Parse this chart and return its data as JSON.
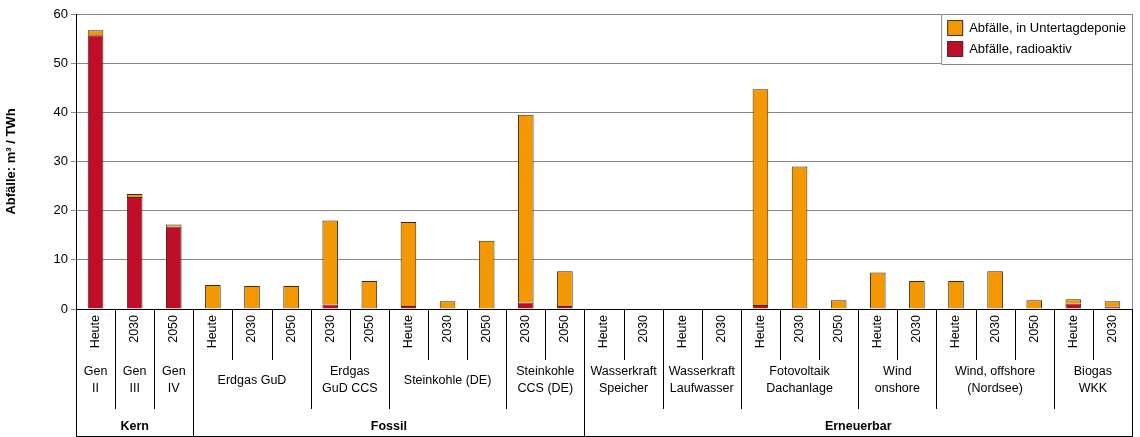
{
  "chart_data": {
    "type": "bar",
    "stacked": true,
    "ylabel": "Abfälle: m³ / TWh",
    "categories": [
      "Heute",
      "2030",
      "2050",
      "Heute",
      "2030",
      "2050",
      "2030",
      "2050",
      "Heute",
      "2030",
      "2050",
      "2030",
      "2050",
      "Heute",
      "2030",
      "Heute",
      "2030",
      "Heute",
      "2030",
      "2050",
      "Heute",
      "2030",
      "Heute",
      "2030",
      "2050",
      "Heute",
      "2030"
    ],
    "series": [
      {
        "name": "Abfälle, radioaktiv",
        "color": "#c00d2a",
        "values": [
          55.7,
          22.8,
          16.8,
          0,
          0,
          0,
          0.9,
          null,
          0.6,
          null,
          null,
          1.3,
          0.6,
          0,
          0,
          0,
          0,
          0.8,
          null,
          0,
          null,
          0,
          0,
          0,
          0,
          1.1,
          0.5
        ]
      },
      {
        "name": "Abfälle, in Untertagdeponie",
        "color": "#f39800",
        "values": [
          1.0,
          0.6,
          0.4,
          4.9,
          4.7,
          4.7,
          17.1,
          5.7,
          17.1,
          1.6,
          13.9,
          38.2,
          7.1,
          0,
          0,
          0,
          0,
          43.9,
          29.0,
          1.8,
          7.4,
          5.7,
          5.7,
          7.7,
          1.8,
          0.9,
          1.1
        ]
      }
    ],
    "ylim": [
      0,
      60
    ],
    "yticks": [
      0,
      10,
      20,
      30,
      40,
      50,
      60
    ],
    "grid": "y",
    "legend": "top right",
    "annotations": [
      "Gen II",
      "Gen III",
      "Gen IV",
      "Erdgas GuD",
      "Erdgas GuD CCS",
      "Steinkohle (DE)",
      "Steinkohle CCS (DE)",
      "Wasserkraft Speicher",
      "Wasserkraft Laufwasser",
      "Fotovoltaik Dachanlage",
      "Wind onshore",
      "Wind, offshore (Nordsee)",
      "Biogas WKK",
      "Kern",
      "Fossil",
      "Erneuerbar"
    ]
  }
}
